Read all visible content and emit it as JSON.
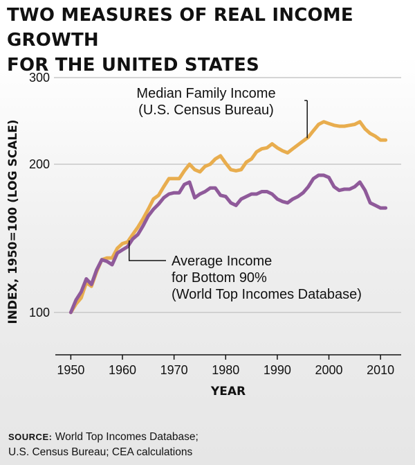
{
  "title_lines": [
    "TWO MEASURES OF REAL INCOME GROWTH",
    "FOR THE UNITED STATES"
  ],
  "colors": {
    "median": "#e8ad4e",
    "average": "#8f5a9a",
    "grid": "#c8c8c8"
  },
  "source": {
    "label": "SOURCE:",
    "line1": "World Top Incomes Database;",
    "line2": "U.S. Census Bureau; CEA calculations"
  },
  "chart_data": {
    "type": "line",
    "xlabel": "YEAR",
    "ylabel": "INDEX, 1950=100 (LOG SCALE)",
    "yscale": "log",
    "xlim": [
      1947,
      2014
    ],
    "ylim": [
      82,
      300
    ],
    "xticks": [
      1950,
      1960,
      1970,
      1980,
      1990,
      2000,
      2010
    ],
    "yticks": [
      100,
      200,
      300
    ],
    "grid": "horizontal",
    "annotations": [
      {
        "series": "median",
        "lines": [
          "Median Family Income",
          "(U.S. Census Bureau)"
        ]
      },
      {
        "series": "average",
        "lines": [
          "Average Income",
          "for Bottom 90%",
          "(World Top Incomes Database)"
        ]
      }
    ],
    "series": [
      {
        "key": "median",
        "x": [
          1950,
          1951,
          1952,
          1953,
          1954,
          1955,
          1956,
          1957,
          1958,
          1959,
          1960,
          1961,
          1962,
          1963,
          1964,
          1965,
          1966,
          1967,
          1968,
          1969,
          1970,
          1971,
          1972,
          1973,
          1974,
          1975,
          1976,
          1977,
          1978,
          1979,
          1980,
          1981,
          1982,
          1983,
          1984,
          1985,
          1986,
          1987,
          1988,
          1989,
          1990,
          1991,
          1992,
          1993,
          1994,
          1995,
          1996,
          1997,
          1998,
          1999,
          2000,
          2001,
          2002,
          2003,
          2004,
          2005,
          2006,
          2007,
          2008,
          2009,
          2010,
          2011
        ],
        "values": [
          100,
          104,
          107,
          115,
          113,
          121,
          128,
          129,
          129,
          135,
          138,
          139,
          144,
          149,
          155,
          162,
          170,
          173,
          180,
          187,
          187,
          187,
          194,
          200,
          195,
          193,
          198,
          200,
          205,
          208,
          201,
          195,
          194,
          195,
          202,
          205,
          212,
          215,
          216,
          220,
          216,
          213,
          211,
          215,
          219,
          223,
          227,
          234,
          241,
          244,
          242,
          240,
          239,
          239,
          240,
          241,
          244,
          236,
          231,
          228,
          224,
          224
        ]
      },
      {
        "key": "average",
        "x": [
          1950,
          1951,
          1952,
          1953,
          1954,
          1955,
          1956,
          1957,
          1958,
          1959,
          1960,
          1961,
          1962,
          1963,
          1964,
          1965,
          1966,
          1967,
          1968,
          1969,
          1970,
          1971,
          1972,
          1973,
          1974,
          1975,
          1976,
          1977,
          1978,
          1979,
          1980,
          1981,
          1982,
          1983,
          1984,
          1985,
          1986,
          1987,
          1988,
          1989,
          1990,
          1991,
          1992,
          1993,
          1994,
          1995,
          1996,
          1997,
          1998,
          1999,
          2000,
          2001,
          2002,
          2003,
          2004,
          2005,
          2006,
          2007,
          2008,
          2009,
          2010,
          2011
        ],
        "values": [
          100,
          106,
          110,
          117,
          114,
          122,
          128,
          127,
          125,
          132,
          134,
          136,
          141,
          144,
          150,
          157,
          162,
          166,
          171,
          174,
          175,
          175,
          182,
          184,
          171,
          174,
          176,
          179,
          179,
          173,
          172,
          167,
          165,
          170,
          172,
          174,
          174,
          176,
          176,
          174,
          170,
          168,
          167,
          170,
          172,
          175,
          180,
          187,
          190,
          190,
          188,
          180,
          177,
          178,
          178,
          180,
          184,
          177,
          167,
          165,
          163,
          163
        ]
      }
    ]
  }
}
